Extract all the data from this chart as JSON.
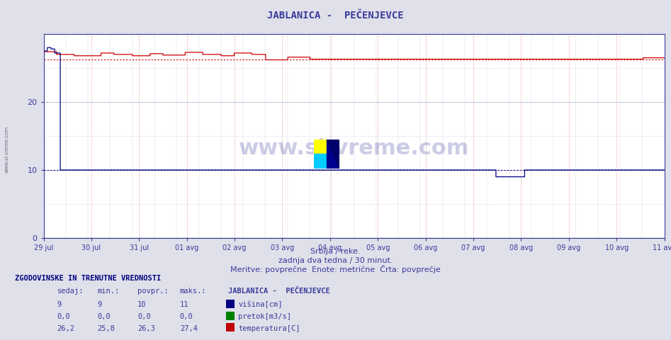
{
  "title": "JABLANICA -  PEČENJEVCE",
  "bg_color": "#dfe0ea",
  "plot_bg_color": "#ffffff",
  "grid_major_color": "#c8c8d8",
  "grid_minor_color": "#e4e4ee",
  "grid_minor_red": "#f0d0d0",
  "axis_color": "#3a3a9a",
  "x_labels": [
    "29 jul",
    "30 jul",
    "31 jul",
    "01 avg",
    "02 avg",
    "03 avg",
    "04 avg",
    "05 avg",
    "06 avg",
    "07 avg",
    "08 avg",
    "09 avg",
    "10 avg",
    "11 avg"
  ],
  "n_points": 672,
  "ylim": [
    0,
    30
  ],
  "yticks": [
    0,
    10,
    20
  ],
  "subtitle1": "Srbija / reke.",
  "subtitle2": "zadnja dva tedna / 30 minut.",
  "subtitle3": "Meritve: povprečne  Enote: metrične  Črta: povprečje",
  "table_header": "ZGODOVINSKE IN TRENUTNE VREDNOSTI",
  "col_headers": [
    "sedaj:",
    "min.:",
    "povpr.:",
    "maks.:"
  ],
  "station_name": "JABLANICA -  PEČENJEVCE",
  "rows": [
    {
      "values": [
        "9",
        "9",
        "10",
        "11"
      ],
      "label": "višina[cm]",
      "color": "#000080"
    },
    {
      "values": [
        "0,0",
        "0,0",
        "0,0",
        "0,0"
      ],
      "label": "pretok[m3/s]",
      "color": "#008000"
    },
    {
      "values": [
        "26,2",
        "25,8",
        "26,3",
        "27,4"
      ],
      "label": "temperatura[C]",
      "color": "#c00000"
    }
  ],
  "visina_avg": 10.0,
  "temp_avg": 26.3,
  "watermark": "www.si-vreme.com",
  "side_text": "www.si-vreme.com"
}
